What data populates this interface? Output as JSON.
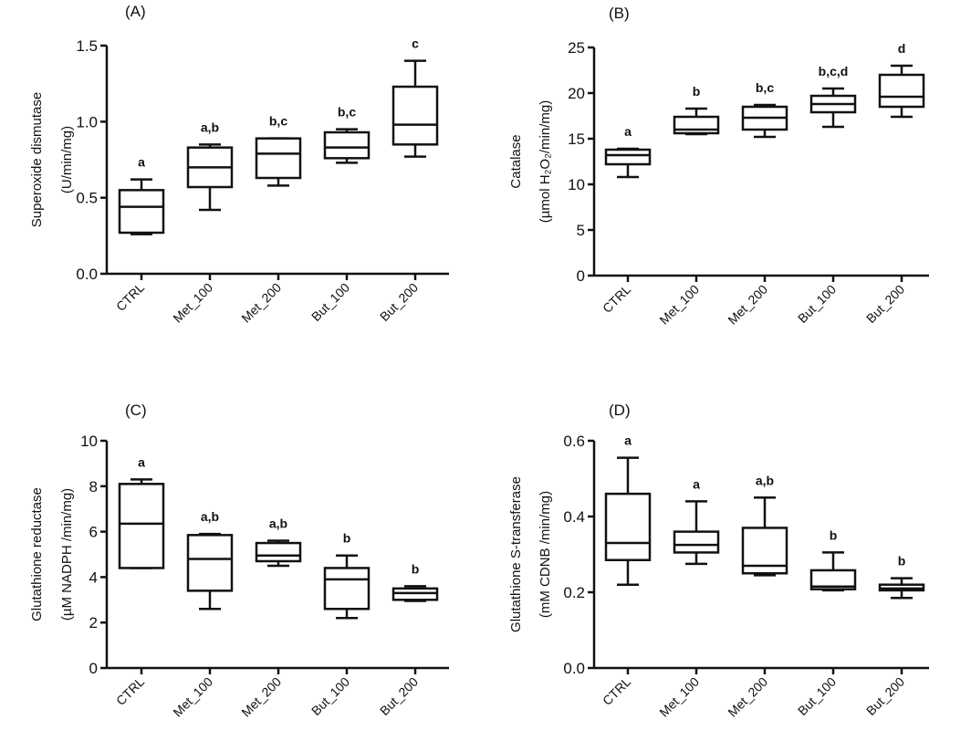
{
  "chart_data": [
    {
      "type": "box",
      "panel_label": "(A)",
      "ylabel": [
        "Superoxide dismutase",
        "(U/min/mg)"
      ],
      "ylim": [
        0,
        1.5
      ],
      "yticks": [
        "0.0",
        "0.5",
        "1.0",
        "1.5"
      ],
      "ytick_values": [
        0,
        0.5,
        1.0,
        1.5
      ],
      "categories": [
        "CTRL",
        "Met_100",
        "Met_200",
        "But_100",
        "But_200"
      ],
      "boxes": [
        {
          "min": 0.26,
          "q1": 0.27,
          "median": 0.44,
          "q3": 0.55,
          "max": 0.62,
          "letters": "a"
        },
        {
          "min": 0.42,
          "q1": 0.57,
          "median": 0.7,
          "q3": 0.83,
          "max": 0.85,
          "letters": "a,b"
        },
        {
          "min": 0.58,
          "q1": 0.63,
          "median": 0.79,
          "q3": 0.89,
          "max": 0.89,
          "letters": "b,c"
        },
        {
          "min": 0.73,
          "q1": 0.76,
          "median": 0.83,
          "q3": 0.93,
          "max": 0.95,
          "letters": "b,c"
        },
        {
          "min": 0.77,
          "q1": 0.85,
          "median": 0.98,
          "q3": 1.23,
          "max": 1.4,
          "letters": "c"
        }
      ]
    },
    {
      "type": "box",
      "panel_label": "(B)",
      "ylabel": [
        "Catalase",
        "(µmol H₂O₂/min/mg)"
      ],
      "ylim": [
        0,
        25
      ],
      "yticks": [
        "0",
        "5",
        "10",
        "15",
        "20",
        "25"
      ],
      "ytick_values": [
        0,
        5,
        10,
        15,
        20,
        25
      ],
      "categories": [
        "CTRL",
        "Met_100",
        "Met_200",
        "But_100",
        "But_200"
      ],
      "boxes": [
        {
          "min": 10.8,
          "q1": 12.2,
          "median": 13.2,
          "q3": 13.8,
          "max": 13.9,
          "letters": "a"
        },
        {
          "min": 15.5,
          "q1": 15.6,
          "median": 16.0,
          "q3": 17.4,
          "max": 18.3,
          "letters": "b"
        },
        {
          "min": 15.2,
          "q1": 16.0,
          "median": 17.3,
          "q3": 18.5,
          "max": 18.7,
          "letters": "b,c"
        },
        {
          "min": 16.3,
          "q1": 17.9,
          "median": 18.8,
          "q3": 19.7,
          "max": 20.5,
          "letters": "b,c,d"
        },
        {
          "min": 17.4,
          "q1": 18.5,
          "median": 19.6,
          "q3": 22.0,
          "max": 23.0,
          "letters": "d"
        }
      ]
    },
    {
      "type": "box",
      "panel_label": "(C)",
      "ylabel": [
        "Glutathione reductase",
        "(µM NADPH /min/mg)"
      ],
      "ylim": [
        0,
        10
      ],
      "yticks": [
        "0",
        "2",
        "4",
        "6",
        "8",
        "10"
      ],
      "ytick_values": [
        0,
        2,
        4,
        6,
        8,
        10
      ],
      "categories": [
        "CTRL",
        "Met_100",
        "Met_200",
        "But_100",
        "But_200"
      ],
      "boxes": [
        {
          "min": 4.4,
          "q1": 4.4,
          "median": 6.35,
          "q3": 8.1,
          "max": 8.3,
          "letters": "a"
        },
        {
          "min": 2.6,
          "q1": 3.4,
          "median": 4.8,
          "q3": 5.85,
          "max": 5.9,
          "letters": "a,b"
        },
        {
          "min": 4.5,
          "q1": 4.7,
          "median": 4.95,
          "q3": 5.5,
          "max": 5.6,
          "letters": "a,b"
        },
        {
          "min": 2.2,
          "q1": 2.6,
          "median": 3.9,
          "q3": 4.4,
          "max": 4.95,
          "letters": "b"
        },
        {
          "min": 2.95,
          "q1": 3.0,
          "median": 3.3,
          "q3": 3.5,
          "max": 3.6,
          "letters": "b"
        }
      ]
    },
    {
      "type": "box",
      "panel_label": "(D)",
      "ylabel": [
        "Glutathione S-transferase",
        "(mM CDNB /min/mg)"
      ],
      "ylim": [
        0,
        0.6
      ],
      "yticks": [
        "0.0",
        "0.2",
        "0.4",
        "0.6"
      ],
      "ytick_values": [
        0,
        0.2,
        0.4,
        0.6
      ],
      "categories": [
        "CTRL",
        "Met_100",
        "Met_200",
        "But_100",
        "But_200"
      ],
      "boxes": [
        {
          "min": 0.22,
          "q1": 0.285,
          "median": 0.33,
          "q3": 0.46,
          "max": 0.555,
          "letters": "a"
        },
        {
          "min": 0.275,
          "q1": 0.305,
          "median": 0.325,
          "q3": 0.36,
          "max": 0.44,
          "letters": "a"
        },
        {
          "min": 0.245,
          "q1": 0.25,
          "median": 0.27,
          "q3": 0.37,
          "max": 0.45,
          "letters": "a,b"
        },
        {
          "min": 0.205,
          "q1": 0.208,
          "median": 0.215,
          "q3": 0.258,
          "max": 0.305,
          "letters": "b"
        },
        {
          "min": 0.185,
          "q1": 0.205,
          "median": 0.21,
          "q3": 0.22,
          "max": 0.237,
          "letters": "b"
        }
      ]
    }
  ]
}
